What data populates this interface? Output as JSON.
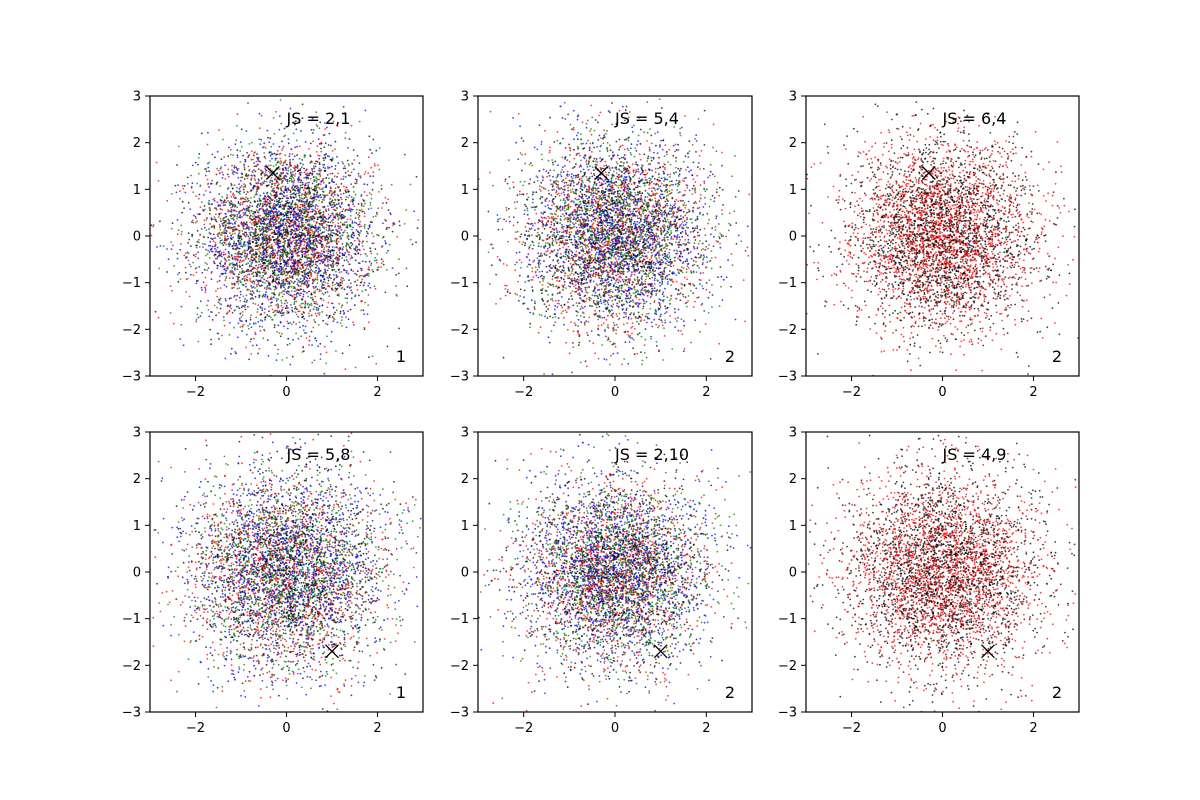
{
  "chart_data": [
    {
      "type": "scatter",
      "xlim": [
        -3,
        3
      ],
      "ylim": [
        -3,
        3
      ],
      "x_ticks": [
        "−2",
        "0",
        "2"
      ],
      "y_ticks": [
        "−3",
        "−2",
        "−1",
        "0",
        "1",
        "2",
        "3"
      ],
      "annotation": "JS = 2,1",
      "corner_label": "1",
      "marker": {
        "x": -0.3,
        "y": 1.35,
        "symbol": "x"
      },
      "series_colors": [
        "#0000ff",
        "#ff0000",
        "#008000",
        "#000000"
      ],
      "spread": 0.95,
      "points_per_series": 1300
    },
    {
      "type": "scatter",
      "xlim": [
        -3,
        3
      ],
      "ylim": [
        -3,
        3
      ],
      "x_ticks": [
        "−2",
        "0",
        "2"
      ],
      "y_ticks": [
        "−3",
        "−2",
        "−1",
        "0",
        "1",
        "2",
        "3"
      ],
      "annotation": "JS = 5,4",
      "corner_label": "2",
      "marker": {
        "x": -0.3,
        "y": 1.35,
        "symbol": "x"
      },
      "series_colors": [
        "#0000ff",
        "#ff0000",
        "#008000",
        "#000000"
      ],
      "spread": 1.0,
      "points_per_series": 1300
    },
    {
      "type": "scatter",
      "xlim": [
        -3,
        3
      ],
      "ylim": [
        -3,
        3
      ],
      "x_ticks": [
        "−2",
        "0",
        "2"
      ],
      "y_ticks": [
        "−3",
        "−2",
        "−1",
        "0",
        "1",
        "2",
        "3"
      ],
      "annotation": "JS = 6,4",
      "corner_label": "2",
      "marker": {
        "x": -0.3,
        "y": 1.35,
        "symbol": "x"
      },
      "series_colors": [
        "#000000",
        "#ff0000"
      ],
      "spread": 1.0,
      "points_per_series": 2200
    },
    {
      "type": "scatter",
      "xlim": [
        -3,
        3
      ],
      "ylim": [
        -3,
        3
      ],
      "x_ticks": [
        "−2",
        "0",
        "2"
      ],
      "y_ticks": [
        "−3",
        "−2",
        "−1",
        "0",
        "1",
        "2",
        "3"
      ],
      "annotation": "JS = 5,8",
      "corner_label": "1",
      "marker": {
        "x": 1.0,
        "y": -1.7,
        "symbol": "x"
      },
      "series_colors": [
        "#0000ff",
        "#ff0000",
        "#008000",
        "#000000"
      ],
      "spread": 1.05,
      "points_per_series": 1300
    },
    {
      "type": "scatter",
      "xlim": [
        -3,
        3
      ],
      "ylim": [
        -3,
        3
      ],
      "x_ticks": [
        "−2",
        "0",
        "2"
      ],
      "y_ticks": [
        "−3",
        "−2",
        "−1",
        "0",
        "1",
        "2",
        "3"
      ],
      "annotation": "JS = 2,10",
      "corner_label": "2",
      "marker": {
        "x": 1.0,
        "y": -1.7,
        "symbol": "x"
      },
      "series_colors": [
        "#0000ff",
        "#ff0000",
        "#008000",
        "#000000"
      ],
      "spread": 1.0,
      "points_per_series": 1300
    },
    {
      "type": "scatter",
      "xlim": [
        -3,
        3
      ],
      "ylim": [
        -3,
        3
      ],
      "x_ticks": [
        "−2",
        "0",
        "2"
      ],
      "y_ticks": [
        "−3",
        "−2",
        "−1",
        "0",
        "1",
        "2",
        "3"
      ],
      "annotation": "JS = 4,9",
      "corner_label": "2",
      "marker": {
        "x": 1.0,
        "y": -1.7,
        "symbol": "x"
      },
      "series_colors": [
        "#000000",
        "#ff0000"
      ],
      "spread": 1.05,
      "points_per_series": 2200
    }
  ]
}
